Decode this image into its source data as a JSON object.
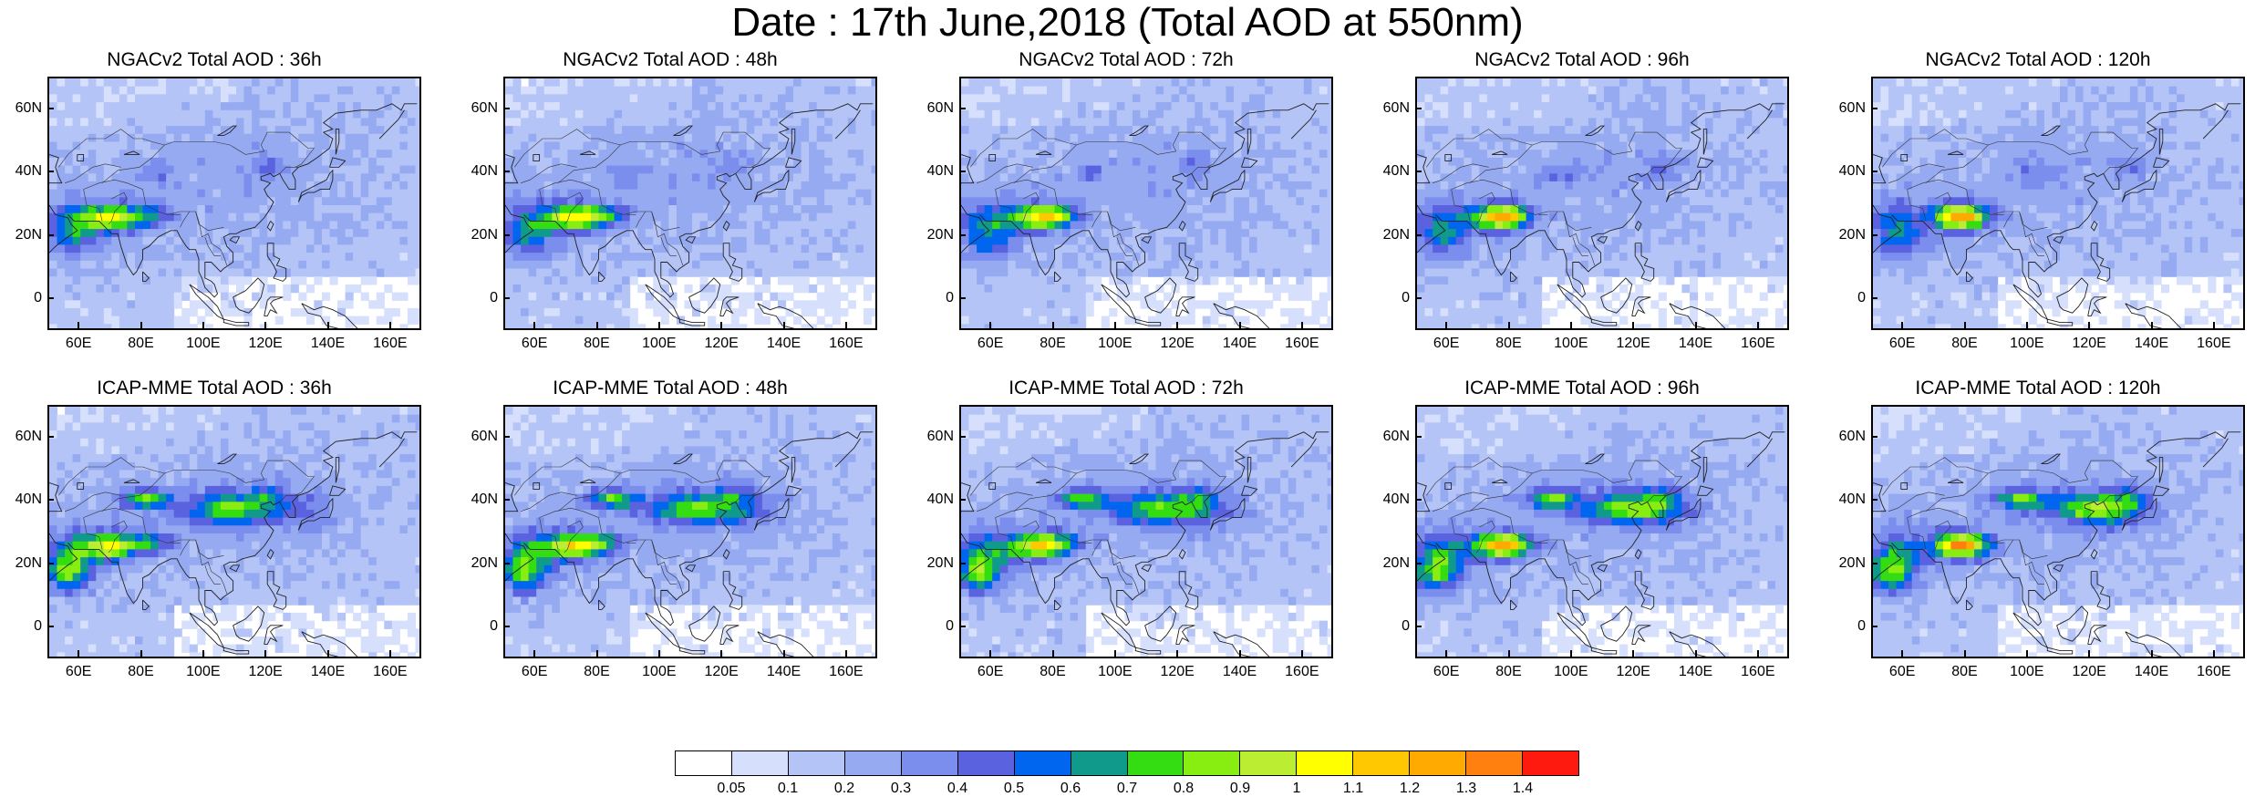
{
  "title": "Date : 17th June,2018 (Total AOD at 550nm)",
  "panels": [
    {
      "title": "NGACv2 Total AOD : 36h"
    },
    {
      "title": "NGACv2 Total AOD : 48h"
    },
    {
      "title": "NGACv2 Total AOD : 72h"
    },
    {
      "title": "NGACv2 Total AOD : 96h"
    },
    {
      "title": "NGACv2 Total AOD : 120h"
    },
    {
      "title": "ICAP-MME Total AOD : 36h"
    },
    {
      "title": "ICAP-MME Total AOD : 48h"
    },
    {
      "title": "ICAP-MME Total AOD : 72h"
    },
    {
      "title": "ICAP-MME Total AOD : 96h"
    },
    {
      "title": "ICAP-MME Total AOD : 120h"
    }
  ],
  "map": {
    "lon_range": [
      50,
      170
    ],
    "lat_range": [
      -10,
      70
    ],
    "lat_ticks": [
      "60N",
      "40N",
      "20N",
      "0"
    ],
    "lat_tick_values": [
      60,
      40,
      20,
      0
    ],
    "lon_ticks": [
      "60E",
      "80E",
      "100E",
      "120E",
      "140E",
      "160E"
    ],
    "lon_tick_values": [
      60,
      80,
      100,
      120,
      140,
      160
    ]
  },
  "colorbar": {
    "colors": [
      "#ffffff",
      "#d6dffc",
      "#b5c4f7",
      "#96aaf2",
      "#7b8eee",
      "#5b62e0",
      "#0066f0",
      "#109a8c",
      "#33dd11",
      "#88ee11",
      "#bbee33",
      "#ffff00",
      "#ffc800",
      "#ffaa00",
      "#ff7f0f",
      "#ff1a10"
    ],
    "labels": [
      "0.05",
      "0.1",
      "0.2",
      "0.3",
      "0.4",
      "0.5",
      "0.6",
      "0.7",
      "0.8",
      "0.9",
      "1",
      "1.1",
      "1.2",
      "1.3",
      "1.4"
    ]
  }
}
